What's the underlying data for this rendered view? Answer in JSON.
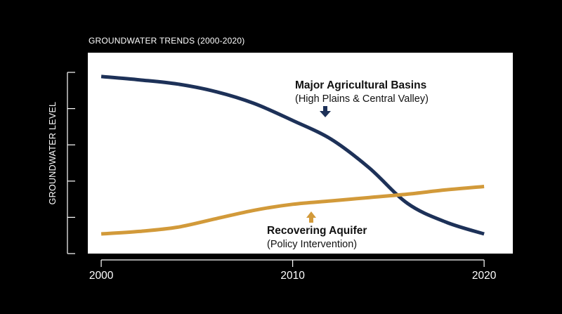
{
  "chart_data": {
    "type": "line",
    "title": "GROUNDWATER TRENDS (2000-2020)",
    "ylabel": "GROUNDWATER LEVEL",
    "xlabel": "",
    "x_ticks": [
      "2000",
      "2010",
      "2020"
    ],
    "xlim": [
      1999.3,
      2021.5
    ],
    "ylim": [
      0,
      100
    ],
    "y_tick_count": 6,
    "grid": false,
    "legend": "none",
    "series": [
      {
        "name": "Major Agricultural Basins",
        "sublabel": "(High Plains & Central Valley)",
        "color": "#1d3158",
        "x": [
          2000,
          2002,
          2004,
          2006,
          2008,
          2010,
          2012,
          2014,
          2016,
          2018,
          2020
        ],
        "y": [
          93,
          91,
          88.5,
          84,
          77,
          67,
          56,
          39,
          18,
          7,
          0
        ]
      },
      {
        "name": "Recovering Aquifer",
        "sublabel": "(Policy Intervention)",
        "color": "#d29a3a",
        "x": [
          2000,
          2002,
          2004,
          2006,
          2008,
          2010,
          2012,
          2014,
          2016,
          2018,
          2020
        ],
        "y": [
          0,
          1.5,
          4,
          9,
          14,
          17.5,
          19.5,
          21.5,
          23.5,
          26,
          28
        ]
      }
    ]
  }
}
